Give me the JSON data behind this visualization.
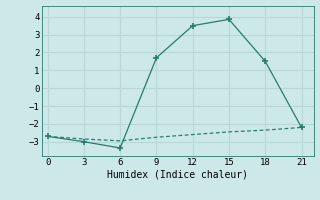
{
  "xlabel": "Humidex (Indice chaleur)",
  "line1_x": [
    0,
    3,
    6,
    9,
    12,
    15,
    18,
    21
  ],
  "line1_y": [
    -2.7,
    -3.0,
    -3.35,
    1.7,
    3.5,
    3.85,
    1.5,
    -2.2
  ],
  "line2_x": [
    0,
    3,
    6,
    9,
    12,
    15,
    18,
    21
  ],
  "line2_y": [
    -2.7,
    -2.85,
    -2.95,
    -2.75,
    -2.6,
    -2.45,
    -2.35,
    -2.2
  ],
  "line_color": "#2a7a6e",
  "bg_color": "#cce8e8",
  "grid_color": "#b8d8d8",
  "xlim": [
    -0.5,
    22
  ],
  "ylim": [
    -3.8,
    4.6
  ],
  "xticks": [
    0,
    3,
    6,
    9,
    12,
    15,
    18,
    21
  ],
  "yticks": [
    -3,
    -2,
    -1,
    0,
    1,
    2,
    3,
    4
  ]
}
